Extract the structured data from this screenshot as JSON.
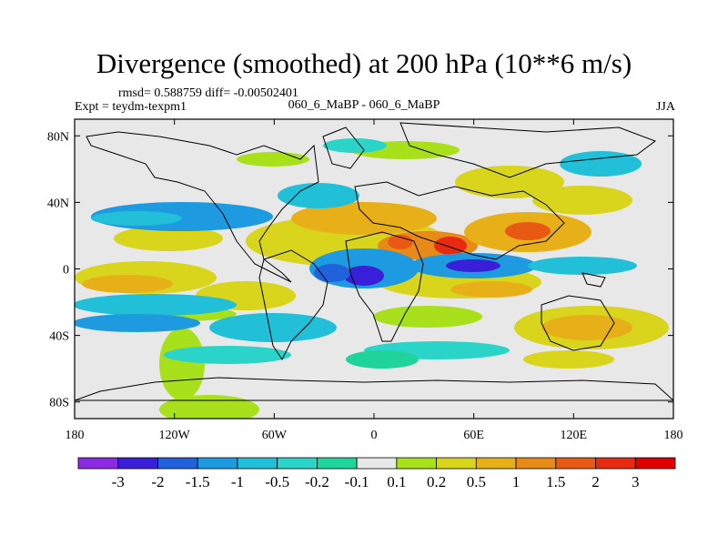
{
  "chart_data": {
    "type": "heatmap",
    "title": "Divergence (smoothed) at 200 hPa (10**6 m/s)",
    "stats_text": "rmsd= 0.588759  diff= -0.00502401",
    "case_text": "060_6_MaBP - 060_6_MaBP",
    "expt_text": "Expt = teydm-texpm1",
    "season": "JJA",
    "xlim": [
      -180,
      180
    ],
    "ylim": [
      -90,
      90
    ],
    "x_ticks": [
      {
        "value": -180,
        "label": "180"
      },
      {
        "value": -120,
        "label": "120W"
      },
      {
        "value": -60,
        "label": "60W"
      },
      {
        "value": 0,
        "label": "0"
      },
      {
        "value": 60,
        "label": "60E"
      },
      {
        "value": 120,
        "label": "120E"
      },
      {
        "value": 180,
        "label": "180"
      }
    ],
    "y_ticks": [
      {
        "value": 80,
        "label": "80N"
      },
      {
        "value": 40,
        "label": "40N"
      },
      {
        "value": 0,
        "label": "0"
      },
      {
        "value": -40,
        "label": "40S"
      },
      {
        "value": -80,
        "label": "80S"
      }
    ],
    "colorbar": {
      "levels": [
        "-3",
        "-2",
        "-1.5",
        "-1",
        "-0.5",
        "-0.2",
        "-0.1",
        "0.1",
        "0.2",
        "0.5",
        "1",
        "1.5",
        "2",
        "3"
      ],
      "colors": [
        "#8a2be2",
        "#3a1fd8",
        "#1f62dc",
        "#1e9be0",
        "#21c0d8",
        "#2ad4c8",
        "#1fd49a",
        "#e8e8e8",
        "#a8e01c",
        "#d9d41c",
        "#e8b018",
        "#e88a18",
        "#e85a14",
        "#e82a10",
        "#e00000"
      ]
    },
    "zero_band_color": "#e8e8e8"
  }
}
